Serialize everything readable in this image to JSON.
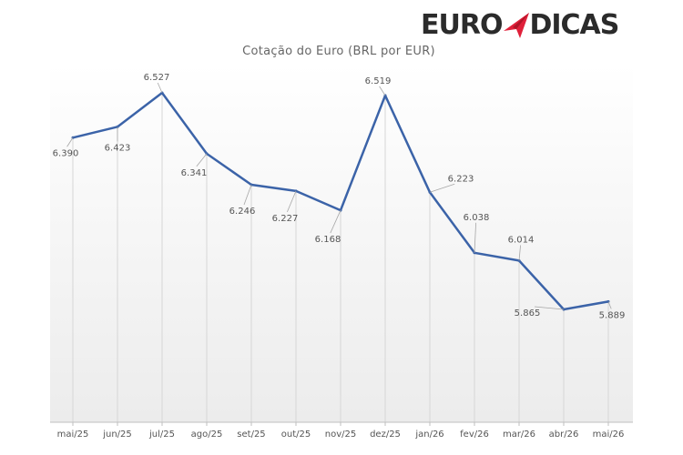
{
  "brand": {
    "logo_left": "EURO",
    "logo_right": "DICAS",
    "accent_color": "#e0203a",
    "text_color": "#2b2b2b"
  },
  "chart_data": {
    "type": "line",
    "title": "Cotação do Euro (BRL por EUR)",
    "xlabel": "",
    "ylabel": "",
    "categories": [
      "mai/25",
      "jun/25",
      "jul/25",
      "ago/25",
      "set/25",
      "out/25",
      "nov/25",
      "dez/25",
      "jan/26",
      "fev/26",
      "mar/26",
      "abr/26",
      "mai/26"
    ],
    "series": [
      {
        "values": [
          6.39,
          6.423,
          6.527,
          6.341,
          6.246,
          6.227,
          6.168,
          6.519,
          6.223,
          6.038,
          6.014,
          5.865,
          5.889
        ],
        "data_labels": [
          "6.390",
          "6.423",
          "6.527",
          "6.341",
          "6.246",
          "6.227",
          "6.168",
          "6.519",
          "6.223",
          "6.038",
          "6.014",
          "5.865",
          "5.889"
        ],
        "color": "#3b63a8"
      }
    ],
    "ylim": [
      5.61,
      6.6
    ],
    "grid": "vertical",
    "legend": "none",
    "background_gradient": [
      "#ffffff",
      "#ececec"
    ]
  }
}
